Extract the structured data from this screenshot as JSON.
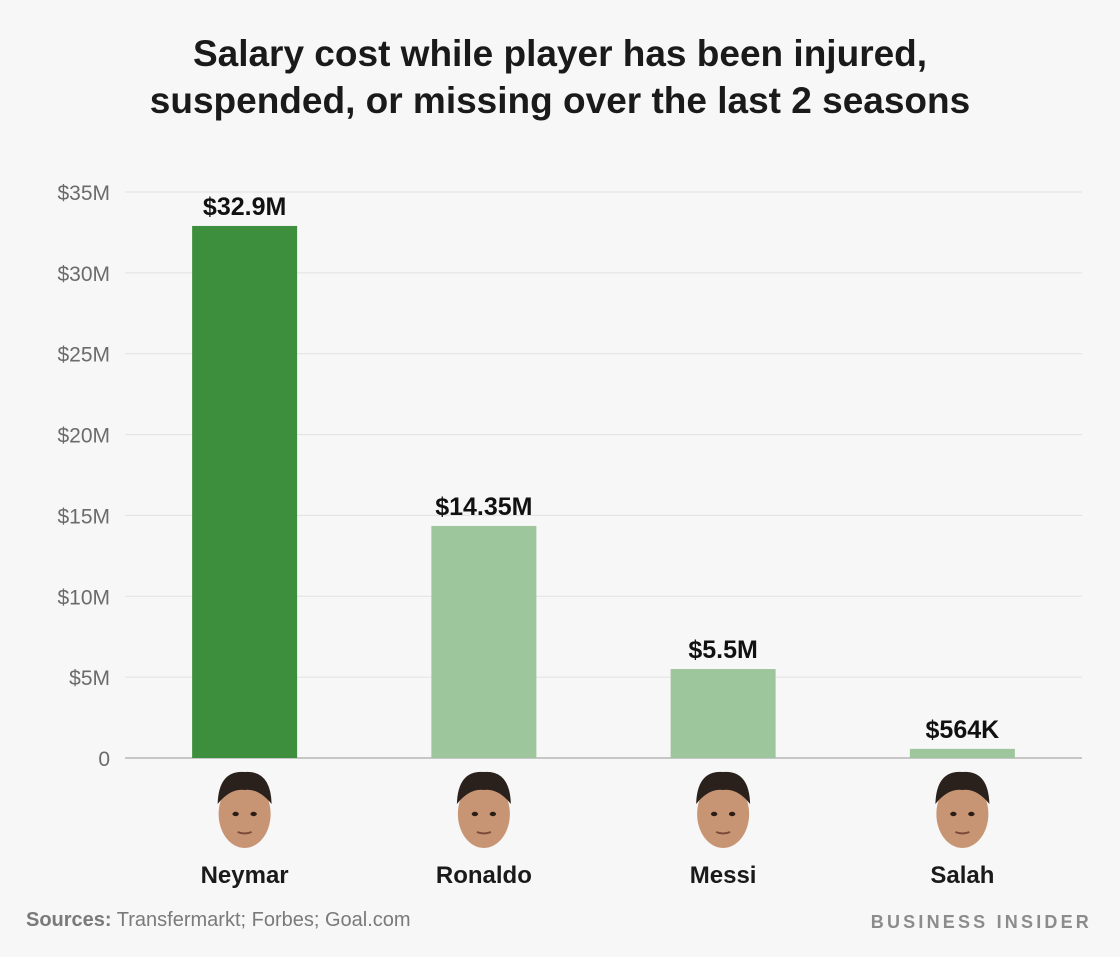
{
  "chart_data": {
    "type": "bar",
    "title_lines": [
      "Salary cost while player has been injured,",
      "suspended, or missing over the last 2 seasons"
    ],
    "categories": [
      "Neymar",
      "Ronaldo",
      "Messi",
      "Salah"
    ],
    "values": [
      32.9,
      14.35,
      5.5,
      0.564
    ],
    "value_labels": [
      "$32.9M",
      "$14.35M",
      "$5.5M",
      "$564K"
    ],
    "unit": "millions USD",
    "ylim": [
      0,
      35
    ],
    "yticks": [
      0,
      5,
      10,
      15,
      20,
      25,
      30,
      35
    ],
    "ytick_labels": [
      "0",
      "$5M",
      "$10M",
      "$15M",
      "$20M",
      "$25M",
      "$30M",
      "$35M"
    ],
    "grid": true,
    "bar_colors": [
      "#3d8f3d",
      "#9dc69d",
      "#9dc69d",
      "#9dc69d"
    ],
    "category_icons": [
      "neymar-face-icon",
      "ronaldo-face-icon",
      "messi-face-icon",
      "salah-face-icon"
    ]
  },
  "footer": {
    "sources_lead": "Sources:",
    "sources_text": " Transfermarkt; Forbes; Goal.com",
    "brand": "BUSINESS INSIDER"
  }
}
